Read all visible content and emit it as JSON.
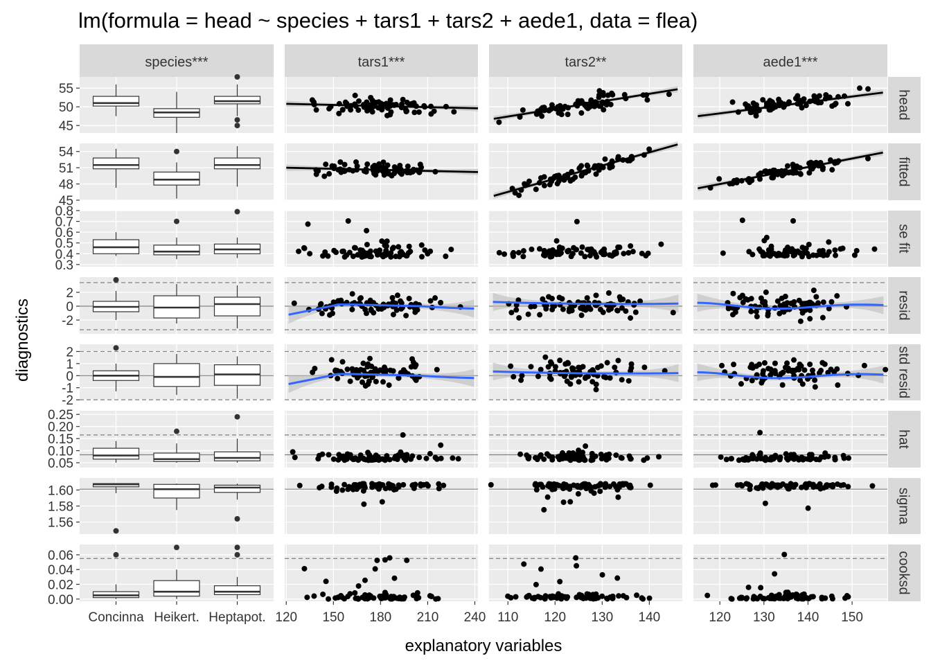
{
  "chart_data": {
    "type": "scatter",
    "title": "lm(formula = head ~ species + tars1 + tars2 + aede1, data = flea)",
    "xlabel": "explanatory variables",
    "ylabel": "diagnostics",
    "columns": [
      {
        "label": "species***",
        "kind": "categorical",
        "categories": [
          "Concinna",
          "Heikert.",
          "Heptapot."
        ]
      },
      {
        "label": "tars1***",
        "kind": "numeric",
        "xlim": [
          119,
          242
        ],
        "ticks": [
          120,
          150,
          180,
          210,
          240
        ]
      },
      {
        "label": "tars2**",
        "kind": "numeric",
        "xlim": [
          106,
          147
        ],
        "ticks": [
          110,
          120,
          130,
          140
        ]
      },
      {
        "label": "aede1***",
        "kind": "numeric",
        "xlim": [
          114,
          158
        ],
        "ticks": [
          120,
          130,
          140,
          150
        ]
      }
    ],
    "rows": [
      {
        "label": "head",
        "ylim": [
          43,
          58
        ],
        "ticks": [
          45,
          50,
          55
        ],
        "fit": "lm",
        "boxes": [
          [
            47.5,
            50.2,
            51,
            52.8,
            56
          ],
          [
            43,
            47.2,
            48.5,
            49.5,
            54
          ],
          [
            47.5,
            50.8,
            51.5,
            52.8,
            56
          ]
        ],
        "outliers": [
          [],
          [],
          [
            45,
            46.5,
            58
          ]
        ],
        "lines": [
          [
            120,
            50.8,
            242,
            49.6
          ],
          [
            107,
            46.8,
            146,
            54.7
          ],
          [
            115,
            47.5,
            157,
            53.8
          ]
        ],
        "hlines": []
      },
      {
        "label": "fitted",
        "ylim": [
          45,
          55.5
        ],
        "ticks": [
          45,
          48,
          51,
          54
        ],
        "fit": "lm",
        "boxes": [
          [
            47.3,
            50.8,
            51.5,
            52.8,
            54.5
          ],
          [
            45.3,
            47.8,
            48.8,
            50.2,
            52
          ],
          [
            47.5,
            50.8,
            51.5,
            52.8,
            55
          ]
        ],
        "outliers": [
          [],
          [
            54
          ],
          []
        ],
        "lines": [
          [
            120,
            51,
            242,
            50.2
          ],
          [
            107,
            45.8,
            146,
            55.3
          ],
          [
            115,
            47.2,
            157,
            53.8
          ]
        ],
        "hlines": []
      },
      {
        "label": "se fit",
        "ylim": [
          0.28,
          0.8
        ],
        "ticks": [
          0.3,
          0.4,
          0.5,
          0.6,
          0.7,
          0.8
        ],
        "fit": "none",
        "boxes": [
          [
            0.38,
            0.4,
            0.46,
            0.53,
            0.6
          ],
          [
            0.35,
            0.39,
            0.42,
            0.48,
            0.55
          ],
          [
            0.36,
            0.4,
            0.44,
            0.49,
            0.55
          ]
        ],
        "outliers": [
          [],
          [
            0.7
          ],
          [
            0.79
          ]
        ],
        "lines": [],
        "hlines": []
      },
      {
        "label": "resid",
        "ylim": [
          -4,
          4.2
        ],
        "ticks": [
          -2,
          0,
          2
        ],
        "fit": "loess",
        "boxes": [
          [
            -2,
            -0.8,
            -0.1,
            0.7,
            2.2
          ],
          [
            -2.5,
            -1.7,
            -0.2,
            1.5,
            3.2
          ],
          [
            -3.2,
            -1.4,
            0.3,
            1.3,
            3
          ]
        ],
        "outliers": [
          [
            3.8
          ],
          [],
          []
        ],
        "lines": [],
        "hlines": [
          {
            "y": 0,
            "style": "solid"
          },
          {
            "y": 3.4,
            "style": "dashed"
          },
          {
            "y": -3.4,
            "style": "dashed"
          }
        ]
      },
      {
        "label": "std resid",
        "ylim": [
          -2.05,
          2.6
        ],
        "ticks": [
          -2,
          -1,
          0,
          1,
          2
        ],
        "fit": "loess",
        "boxes": [
          [
            -1.3,
            -0.4,
            0,
            0.4,
            1
          ],
          [
            -1.6,
            -0.9,
            -0.1,
            1,
            1.8
          ],
          [
            -1.9,
            -0.8,
            0.1,
            0.9,
            1.6
          ]
        ],
        "outliers": [
          [
            2.3
          ],
          [],
          []
        ],
        "lines": [],
        "hlines": [
          {
            "y": 0,
            "style": "solid"
          },
          {
            "y": 2,
            "style": "dashed"
          },
          {
            "y": -2,
            "style": "dashed"
          }
        ]
      },
      {
        "label": "hat",
        "ylim": [
          0.03,
          0.265
        ],
        "ticks": [
          0.05,
          0.1,
          0.15,
          0.2,
          0.25
        ],
        "fit": "none",
        "boxes": [
          [
            0.05,
            0.065,
            0.08,
            0.11,
            0.14
          ],
          [
            0.05,
            0.055,
            0.065,
            0.09,
            0.13
          ],
          [
            0.05,
            0.058,
            0.07,
            0.095,
            0.15
          ]
        ],
        "outliers": [
          [],
          [
            0.18
          ],
          [
            0.24
          ]
        ],
        "lines": [],
        "hlines": [
          {
            "y": 0.083,
            "style": "solid"
          },
          {
            "y": 0.165,
            "style": "dashed"
          }
        ]
      },
      {
        "label": "sigma",
        "ylim": [
          1.545,
          1.615
        ],
        "ticks": [
          1.56,
          1.58,
          1.6
        ],
        "fit": "none",
        "boxes": [
          [
            1.596,
            1.604,
            1.607,
            1.608,
            1.608
          ],
          [
            1.575,
            1.59,
            1.601,
            1.607,
            1.608
          ],
          [
            1.588,
            1.597,
            1.603,
            1.606,
            1.608
          ]
        ],
        "outliers": [
          [
            1.549
          ],
          [],
          [
            1.564
          ]
        ],
        "lines": [],
        "hlines": [
          {
            "y": 1.601,
            "style": "solid"
          }
        ]
      },
      {
        "label": "cooksd",
        "ylim": [
          -0.003,
          0.074
        ],
        "ticks": [
          0.0,
          0.02,
          0.04,
          0.06
        ],
        "fit": "none",
        "boxes": [
          [
            0,
            0.002,
            0.005,
            0.01,
            0.02
          ],
          [
            0,
            0.004,
            0.01,
            0.025,
            0.04
          ],
          [
            0,
            0.006,
            0.01,
            0.018,
            0.03
          ]
        ],
        "outliers": [
          [
            0.06
          ],
          [
            0.07
          ],
          [
            0.06,
            0.07
          ]
        ],
        "lines": [],
        "hlines": [
          {
            "y": 0.055,
            "style": "dashed"
          }
        ]
      }
    ],
    "grid": true,
    "colors": {
      "panel": "#ebebeb",
      "strip": "#d9d9d9",
      "point": "#000000",
      "loess": "#3366ff",
      "band": "#bdbdbd",
      "ref": "#7f7f7f"
    }
  }
}
